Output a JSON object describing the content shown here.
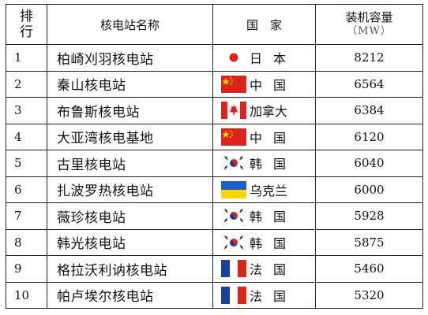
{
  "header": {
    "rank": "排行",
    "name": "核电站名称",
    "country": "国　家",
    "capacity": "装机容量",
    "capacity_unit": "（MW）"
  },
  "rows": [
    {
      "rank": "1",
      "name": "柏崎刈羽核电站",
      "country": "日本",
      "flag": "japan-flag-icon",
      "capacity": "8212"
    },
    {
      "rank": "2",
      "name": "秦山核电站",
      "country": "中国",
      "flag": "china-flag-icon",
      "capacity": "6564"
    },
    {
      "rank": "3",
      "name": "布鲁斯核电站",
      "country": "加拿大",
      "flag": "canada-flag-icon",
      "capacity": "6384"
    },
    {
      "rank": "4",
      "name": "大亚湾核电基地",
      "country": "中国",
      "flag": "china-flag-icon",
      "capacity": "6120"
    },
    {
      "rank": "5",
      "name": "古里核电站",
      "country": "韩国",
      "flag": "korea-flag-icon",
      "capacity": "6040"
    },
    {
      "rank": "6",
      "name": "扎波罗热核电站",
      "country": "乌克兰",
      "flag": "ukraine-flag-icon",
      "capacity": "6000"
    },
    {
      "rank": "7",
      "name": "薇珍核电站",
      "country": "韩国",
      "flag": "korea-flag-icon",
      "capacity": "5928"
    },
    {
      "rank": "8",
      "name": "韩光核电站",
      "country": "韩国",
      "flag": "korea-flag-icon",
      "capacity": "5875"
    },
    {
      "rank": "9",
      "name": "格拉沃利讷核电站",
      "country": "法国",
      "flag": "france-flag-icon",
      "capacity": "5460"
    },
    {
      "rank": "10",
      "name": "帕卢埃尔核电站",
      "country": "法国",
      "flag": "france-flag-icon",
      "capacity": "5320"
    }
  ],
  "colors": {
    "red": "#d9241c",
    "china_star": "#ffde00",
    "ukraine_blue": "#1f5fc8",
    "ukraine_yellow": "#ffd500",
    "france_blue": "#1d3fa0",
    "korea_blue": "#1b3c8c"
  }
}
